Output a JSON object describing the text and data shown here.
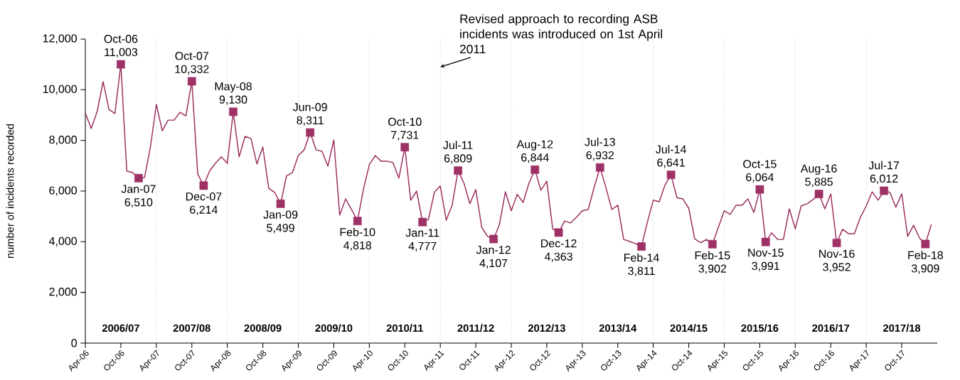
{
  "chart_data": {
    "type": "line",
    "ylabel": "number of incidents recorded",
    "x": [
      "2006-04",
      "2006-05",
      "2006-06",
      "2006-07",
      "2006-08",
      "2006-09",
      "2006-10",
      "2006-11",
      "2006-12",
      "2007-01",
      "2007-02",
      "2007-03",
      "2007-04",
      "2007-05",
      "2007-06",
      "2007-07",
      "2007-08",
      "2007-09",
      "2007-10",
      "2007-11",
      "2007-12",
      "2008-01",
      "2008-02",
      "2008-03",
      "2008-04",
      "2008-05",
      "2008-06",
      "2008-07",
      "2008-08",
      "2008-09",
      "2008-10",
      "2008-11",
      "2008-12",
      "2009-01",
      "2009-02",
      "2009-03",
      "2009-04",
      "2009-05",
      "2009-06",
      "2009-07",
      "2009-08",
      "2009-09",
      "2009-10",
      "2009-11",
      "2009-12",
      "2010-01",
      "2010-02",
      "2010-03",
      "2010-04",
      "2010-05",
      "2010-06",
      "2010-07",
      "2010-08",
      "2010-09",
      "2010-10",
      "2010-11",
      "2010-12",
      "2011-01",
      "2011-02",
      "2011-03",
      "2011-04",
      "2011-05",
      "2011-06",
      "2011-07",
      "2011-08",
      "2011-09",
      "2011-10",
      "2011-11",
      "2011-12",
      "2012-01",
      "2012-02",
      "2012-03",
      "2012-04",
      "2012-05",
      "2012-06",
      "2012-07",
      "2012-08",
      "2012-09",
      "2012-10",
      "2012-11",
      "2012-12",
      "2013-01",
      "2013-02",
      "2013-03",
      "2013-04",
      "2013-05",
      "2013-06",
      "2013-07",
      "2013-08",
      "2013-09",
      "2013-10",
      "2013-11",
      "2013-12",
      "2014-01",
      "2014-02",
      "2014-03",
      "2014-04",
      "2014-05",
      "2014-06",
      "2014-07",
      "2014-08",
      "2014-09",
      "2014-10",
      "2014-11",
      "2014-12",
      "2015-01",
      "2015-02",
      "2015-03",
      "2015-04",
      "2015-05",
      "2015-06",
      "2015-07",
      "2015-08",
      "2015-09",
      "2015-10",
      "2015-11",
      "2015-12",
      "2016-01",
      "2016-02",
      "2016-03",
      "2016-04",
      "2016-05",
      "2016-06",
      "2016-07",
      "2016-08",
      "2016-09",
      "2016-10",
      "2016-11",
      "2016-12",
      "2017-01",
      "2017-02",
      "2017-03",
      "2017-04",
      "2017-05",
      "2017-06",
      "2017-07",
      "2017-08",
      "2017-09",
      "2017-10",
      "2017-11",
      "2017-12",
      "2018-01",
      "2018-02",
      "2018-03"
    ],
    "series": [
      {
        "color": "#9b2d5e",
        "line_style": "solid",
        "values": [
          9080,
          8470,
          9140,
          10320,
          9220,
          9060,
          11003,
          6790,
          6730,
          6510,
          6530,
          7740,
          9420,
          8380,
          8800,
          8800,
          9110,
          8970,
          10332,
          6670,
          6214,
          6790,
          7100,
          7350,
          7090,
          9130,
          7350,
          8160,
          8070,
          7070,
          7740,
          6110,
          5950,
          5499,
          6590,
          6730,
          7400,
          7630,
          8311,
          7630,
          7570,
          6980,
          8020,
          5050,
          5690,
          5270,
          4818,
          6060,
          7040,
          7400,
          7180,
          7180,
          7120,
          6510,
          7731,
          5640,
          6000,
          4777,
          4880,
          5950,
          6200,
          4850,
          5440,
          6809,
          6310,
          5500,
          6060,
          4570,
          4210,
          4107,
          4680,
          5970,
          5220,
          5870,
          5550,
          6320,
          6844,
          6030,
          6390,
          4510,
          4363,
          4820,
          4740,
          4960,
          5220,
          5270,
          6140,
          6932,
          6130,
          5270,
          5440,
          4090,
          4010,
          3920,
          3811,
          4770,
          5640,
          5580,
          6250,
          6641,
          5740,
          5690,
          5320,
          4120,
          3960,
          4090,
          3902,
          4570,
          5220,
          5080,
          5440,
          5440,
          5690,
          5150,
          6064,
          3991,
          4350,
          4090,
          4090,
          5300,
          4510,
          5410,
          5500,
          5660,
          5885,
          5300,
          5890,
          3952,
          4490,
          4320,
          4320,
          4960,
          5410,
          5970,
          5640,
          6012,
          5950,
          5360,
          5890,
          4210,
          4650,
          4150,
          3909,
          4680
        ]
      },
      {
        "type": "scatter",
        "color": "#9e3266",
        "marker": "square",
        "x": [
          "2006-10",
          "2007-01",
          "2007-10",
          "2007-12",
          "2008-05",
          "2009-01",
          "2009-06",
          "2010-02",
          "2010-10",
          "2011-01",
          "2011-07",
          "2012-01",
          "2012-08",
          "2012-12",
          "2013-07",
          "2014-02",
          "2014-07",
          "2015-02",
          "2015-10",
          "2015-11",
          "2016-08",
          "2016-11",
          "2017-07",
          "2018-02"
        ],
        "values": [
          11003,
          6510,
          10332,
          6214,
          9130,
          5499,
          8311,
          4818,
          7731,
          4777,
          6809,
          4107,
          6844,
          4363,
          6932,
          3811,
          6641,
          3902,
          6064,
          3991,
          5885,
          3952,
          6012,
          3909
        ],
        "value_labels": [
          "Oct-06 11,003",
          "Jan-07 6,510",
          "Oct-07 10,332",
          "Dec-07 6,214",
          "May-08 9,130",
          "Jan-09 5,499",
          "Jun-09 8,311",
          "Feb-10 4,818",
          "Oct-10 7,731",
          "Jan-11 4,777",
          "Jul-11 6,809",
          "Jan-12 4,107",
          "Aug-12 6,844",
          "Dec-12 4,363",
          "Jul-13 6,932",
          "Feb-14 3,811",
          "Jul-14 6,641",
          "Feb-15 3,902",
          "Oct-15 6,064",
          "Nov-15 3,991",
          "Aug-16 5,885",
          "Nov-16 3,952",
          "Jul-17 6,012",
          "Feb-18 3,909"
        ]
      }
    ],
    "xlim": [
      "2006-04",
      "2018-04"
    ],
    "xticks": [
      {
        "value": "2006-04",
        "label": "Apr-06"
      },
      {
        "value": "2006-10",
        "label": "Oct-06"
      },
      {
        "value": "2007-04",
        "label": "Apr-07"
      },
      {
        "value": "2007-10",
        "label": "Oct-07"
      },
      {
        "value": "2008-04",
        "label": "Apr-08"
      },
      {
        "value": "2008-10",
        "label": "Oct-08"
      },
      {
        "value": "2009-04",
        "label": "Apr-09"
      },
      {
        "value": "2009-10",
        "label": "Oct-09"
      },
      {
        "value": "2010-04",
        "label": "Apr-10"
      },
      {
        "value": "2010-10",
        "label": "Oct-10"
      },
      {
        "value": "2011-04",
        "label": "Apr-11"
      },
      {
        "value": "2011-10",
        "label": "Oct-11"
      },
      {
        "value": "2012-04",
        "label": "Apr-12"
      },
      {
        "value": "2012-10",
        "label": "Oct-12"
      },
      {
        "value": "2013-04",
        "label": "Apr-13"
      },
      {
        "value": "2013-10",
        "label": "Oct-13"
      },
      {
        "value": "2014-04",
        "label": "Apr-14"
      },
      {
        "value": "2014-10",
        "label": "Oct-14"
      },
      {
        "value": "2015-04",
        "label": "Apr-15"
      },
      {
        "value": "2015-10",
        "label": "Oct-15"
      },
      {
        "value": "2016-04",
        "label": "Apr-16"
      },
      {
        "value": "2016-10",
        "label": "Oct-16"
      },
      {
        "value": "2017-04",
        "label": "Apr-17"
      },
      {
        "value": "2017-10",
        "label": "Oct-17"
      }
    ],
    "ylim": [
      0,
      12000
    ],
    "yticks": [
      0,
      {
        "value": 2000,
        "label": "2,000"
      },
      {
        "value": 4000,
        "label": "4,000"
      },
      {
        "value": 6000,
        "label": "6,000"
      },
      {
        "value": 8000,
        "label": "8,000"
      },
      {
        "value": 10000,
        "label": "10,000"
      },
      {
        "value": 12000,
        "label": "12,000"
      }
    ],
    "ref_lines": [
      {
        "axis": "x",
        "value": "2007-04",
        "color": "#a6a6a6",
        "line_style": "dotted"
      },
      {
        "axis": "x",
        "value": "2008-04",
        "color": "#a6a6a6",
        "line_style": "dotted"
      },
      {
        "axis": "x",
        "value": "2009-04",
        "color": "#a6a6a6",
        "line_style": "dotted"
      },
      {
        "axis": "x",
        "value": "2010-04",
        "color": "#a6a6a6",
        "line_style": "dotted"
      },
      {
        "axis": "x",
        "value": "2011-04",
        "color": "#a6a6a6",
        "line_style": "dotted"
      },
      {
        "axis": "x",
        "value": "2012-04",
        "color": "#a6a6a6",
        "line_style": "dotted"
      },
      {
        "axis": "x",
        "value": "2013-04",
        "color": "#a6a6a6",
        "line_style": "dotted"
      },
      {
        "axis": "x",
        "value": "2014-04",
        "color": "#a6a6a6",
        "line_style": "dotted"
      },
      {
        "axis": "x",
        "value": "2015-04",
        "color": "#a6a6a6",
        "line_style": "dotted"
      },
      {
        "axis": "x",
        "value": "2016-04",
        "color": "#a6a6a6",
        "line_style": "dotted"
      },
      {
        "axis": "x",
        "value": "2017-04",
        "color": "#a6a6a6",
        "line_style": "dotted"
      }
    ],
    "annotations": [
      {
        "text": "Revised approach to recording ASB incidents was introduced on 1st April 2011",
        "x": "2011-04",
        "y": 10900
      },
      "2006/07",
      "2007/08",
      "2008/09",
      "2009/10",
      "2010/11",
      "2011/12",
      "2012/13",
      "2013/14",
      "2014/15",
      "2015/16",
      "2016/17",
      "2017/18"
    ]
  }
}
